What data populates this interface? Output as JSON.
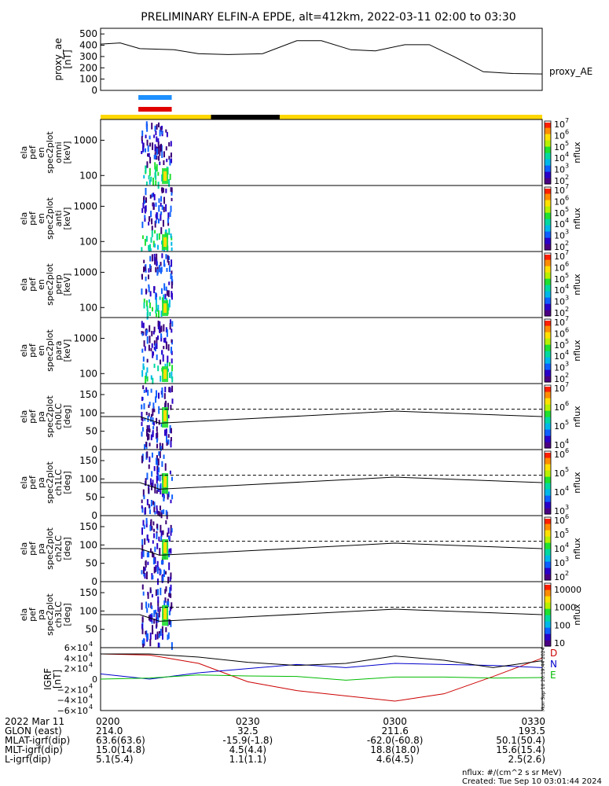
{
  "title": "PRELIMINARY ELFIN-A EPDE, alt=412km, 2022-03-11 02:00 to 03:30",
  "chart_data": [
    {
      "type": "line",
      "panel": "proxy_ae",
      "ylabel_lines": [
        "proxy_ae",
        "[nT]"
      ],
      "series_label": "proxy_AE",
      "ylim": [
        0,
        550
      ],
      "y_ticks": [
        "0",
        "100",
        "200",
        "300",
        "400",
        "500"
      ],
      "x_minutes": [
        0,
        4,
        8,
        15,
        20,
        26,
        33,
        40,
        45,
        51,
        56,
        62,
        67,
        72,
        78,
        84,
        90
      ],
      "values": [
        410,
        420,
        370,
        360,
        325,
        318,
        325,
        440,
        440,
        360,
        350,
        405,
        405,
        300,
        165,
        150,
        145
      ]
    },
    {
      "type": "heatmap",
      "panel": "omni",
      "ylabel_lines": [
        "ela",
        "pef",
        "en",
        "spec2plot",
        "omni",
        "[keV]"
      ],
      "y_ticks": [
        "100",
        "1000"
      ],
      "colorbar_label": "nflux",
      "colorbar_exponents": [
        "2",
        "3",
        "4",
        "5",
        "6",
        "7"
      ]
    },
    {
      "type": "heatmap",
      "panel": "anti",
      "ylabel_lines": [
        "ela",
        "pef",
        "en",
        "spec2plot",
        "anti",
        "[keV]"
      ],
      "y_ticks": [
        "100",
        "1000"
      ],
      "colorbar_label": "nflux",
      "colorbar_exponents": [
        "2",
        "3",
        "4",
        "5",
        "6",
        "7"
      ]
    },
    {
      "type": "heatmap",
      "panel": "perp",
      "ylabel_lines": [
        "ela",
        "pef",
        "en",
        "spec2plot",
        "perp",
        "[keV]"
      ],
      "y_ticks": [
        "100",
        "1000"
      ],
      "colorbar_label": "nflux",
      "colorbar_exponents": [
        "2",
        "3",
        "4",
        "5",
        "6",
        "7"
      ]
    },
    {
      "type": "heatmap",
      "panel": "para",
      "ylabel_lines": [
        "ela",
        "pef",
        "en",
        "spec2plot",
        "para",
        "[keV]"
      ],
      "y_ticks": [
        "100",
        "1000"
      ],
      "colorbar_label": "nflux",
      "colorbar_exponents": [
        "2",
        "3",
        "4",
        "5",
        "6",
        "7"
      ]
    },
    {
      "type": "heatmap",
      "panel": "ch0LC",
      "ylabel_lines": [
        "ela",
        "pef",
        "pa",
        "spec2plot",
        "ch0LC",
        "[deg]"
      ],
      "y_ticks": [
        "0",
        "50",
        "100",
        "150"
      ],
      "colorbar_label": "nflux",
      "colorbar_exponents": [
        "4",
        "5",
        "6",
        "7"
      ]
    },
    {
      "type": "heatmap",
      "panel": "ch1LC",
      "ylabel_lines": [
        "ela",
        "pef",
        "pa",
        "spec2plot",
        "ch1LC",
        "[deg]"
      ],
      "y_ticks": [
        "0",
        "50",
        "100",
        "150"
      ],
      "colorbar_label": "nflux",
      "colorbar_exponents": [
        "3",
        "4",
        "5",
        "6"
      ]
    },
    {
      "type": "heatmap",
      "panel": "ch2LC",
      "ylabel_lines": [
        "ela",
        "pef",
        "pa",
        "spec2plot",
        "ch2LC",
        "[deg]"
      ],
      "y_ticks": [
        "0",
        "50",
        "100",
        "150"
      ],
      "colorbar_label": "nflux",
      "colorbar_exponents": [
        "2",
        "3",
        "4",
        "5",
        "6"
      ]
    },
    {
      "type": "heatmap",
      "panel": "ch3LC",
      "ylabel_lines": [
        "ela",
        "pef",
        "pa",
        "spec2plot",
        "ch3LC",
        "[deg]"
      ],
      "y_ticks": [
        "50",
        "100",
        "150"
      ],
      "colorbar_label": "nflux",
      "colorbar_linear_ticks": [
        "10000",
        "1000",
        "100",
        "10"
      ]
    },
    {
      "type": "line",
      "panel": "IGRF",
      "ylabel_lines": [
        "IGRF",
        "[nT]"
      ],
      "y_ticks": [
        {
          "m": "−6",
          "e": "4"
        },
        {
          "m": "−4",
          "e": "4"
        },
        {
          "m": "−2",
          "e": "4"
        },
        {
          "m": "0",
          "e": ""
        },
        {
          "m": "2",
          "e": "4"
        },
        {
          "m": "4",
          "e": "4"
        },
        {
          "m": "6",
          "e": "4"
        }
      ],
      "ylim": [
        -60000,
        60000
      ],
      "x_minutes": [
        0,
        10,
        20,
        30,
        40,
        50,
        60,
        70,
        80,
        90
      ],
      "series": [
        {
          "name": "D",
          "color": "#cc0000",
          "values": [
            48000,
            46000,
            30000,
            -5000,
            -22000,
            -32000,
            -42000,
            -28000,
            5000,
            40000
          ]
        },
        {
          "name": "N",
          "color": "#0000cc",
          "values": [
            10000,
            0,
            12000,
            20000,
            28000,
            22000,
            30000,
            28000,
            26000,
            22000
          ]
        },
        {
          "name": "E",
          "color": "#00bb00",
          "values": [
            0,
            2000,
            8000,
            6000,
            5000,
            -2000,
            4000,
            4000,
            2000,
            3000
          ]
        },
        {
          "name": "",
          "color": "#000000",
          "values": [
            48000,
            48000,
            42000,
            32000,
            26000,
            30000,
            44000,
            36000,
            22000,
            35000
          ]
        }
      ],
      "side_text": "Mon Sep 10 20:19:44 2024"
    }
  ],
  "x_axis": {
    "row_labels": [
      "2022 Mar 11",
      "GLON (east)",
      "MLAT-igrf(dip)",
      "MLT-igrf(dip)",
      "L-igrf(dip)"
    ],
    "ticks": [
      {
        "label": "0200",
        "minute": 0,
        "values": [
          "214.0",
          "63.6(63.6)",
          "15.0(14.8)",
          "5.1(5.4)"
        ]
      },
      {
        "label": "0230",
        "minute": 30,
        "values": [
          "32.5",
          "-15.9(-1.8)",
          "4.5(4.4)",
          "1.1(1.1)"
        ]
      },
      {
        "label": "0300",
        "minute": 60,
        "values": [
          "211.6",
          "-62.0(-60.8)",
          "18.8(18.0)",
          "4.6(4.5)"
        ]
      },
      {
        "label": "0330",
        "minute": 90,
        "values": [
          "193.5",
          "50.1(50.4)",
          "15.6(15.4)",
          "2.5(2.6)"
        ]
      }
    ]
  },
  "footer": {
    "units": "nflux: #/(cm^2 s sr MeV)",
    "created": "Created: Tue Sep 10 03:01:44 2024"
  },
  "colors": {
    "status_yellow": "#ffd700",
    "status_black": "#000000",
    "blue_marker": "#1e90ff",
    "red_marker": "#e00000"
  }
}
